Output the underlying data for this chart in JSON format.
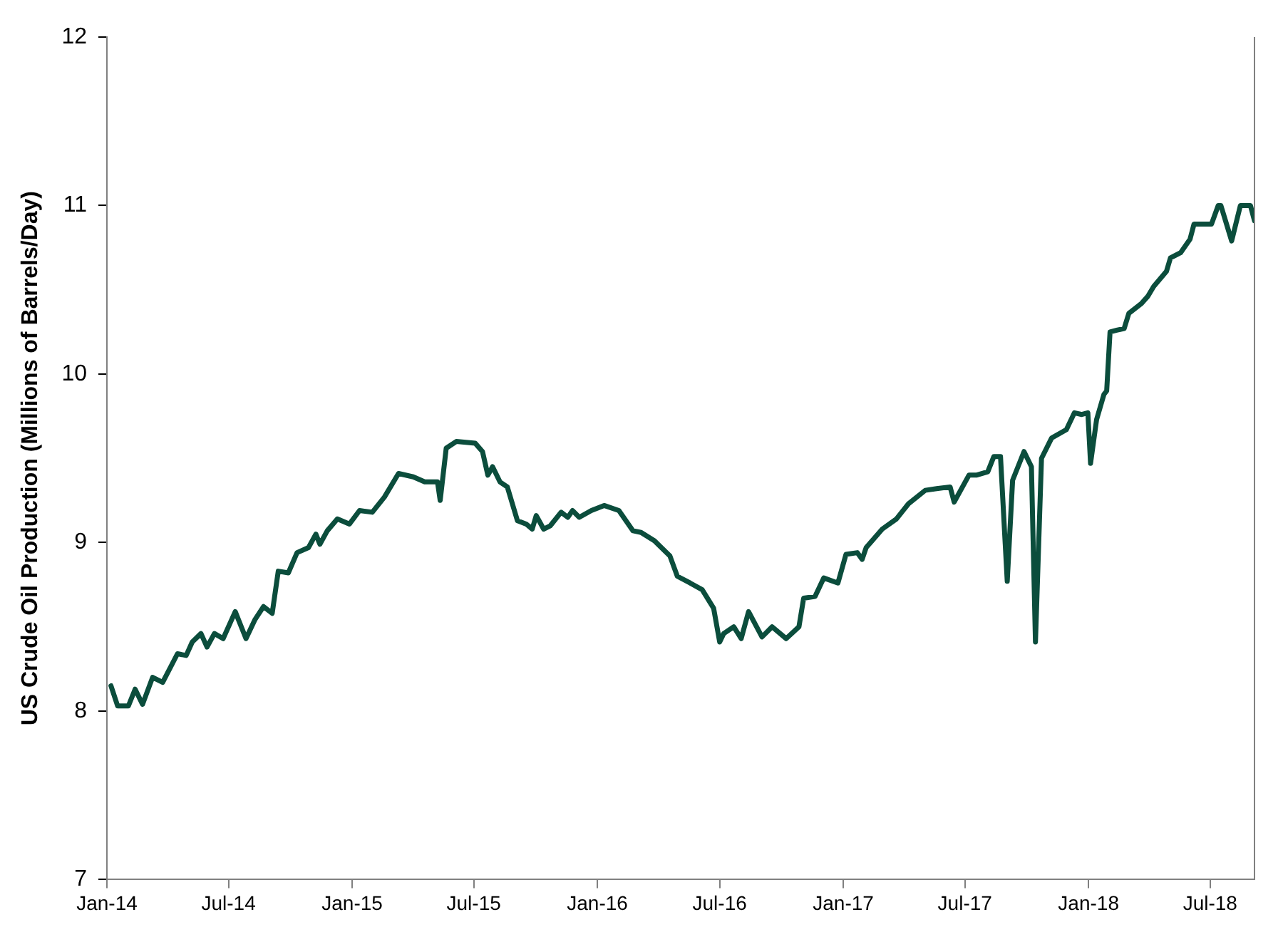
{
  "chart_data": {
    "type": "line",
    "ylabel": "US Crude Oil Production (Millions of Barrels/Day)",
    "x": [
      "2014-01-07",
      "2014-01-17",
      "2014-02-02",
      "2014-02-12",
      "2014-02-23",
      "2014-03-10",
      "2014-03-25",
      "2014-04-16",
      "2014-04-29",
      "2014-05-08",
      "2014-05-21",
      "2014-05-30",
      "2014-06-10",
      "2014-06-23",
      "2014-07-11",
      "2014-07-27",
      "2014-08-09",
      "2014-08-22",
      "2014-09-04",
      "2014-09-13",
      "2014-09-28",
      "2014-10-11",
      "2014-10-28",
      "2014-11-08",
      "2014-11-14",
      "2014-11-25",
      "2014-12-10",
      "2014-12-28",
      "2015-01-12",
      "2015-01-31",
      "2015-02-18",
      "2015-03-11",
      "2015-04-02",
      "2015-04-19",
      "2015-05-08",
      "2015-05-12",
      "2015-05-21",
      "2015-06-05",
      "2015-07-03",
      "2015-07-14",
      "2015-07-22",
      "2015-07-29",
      "2015-08-09",
      "2015-08-20",
      "2015-09-04",
      "2015-09-17",
      "2015-09-26",
      "2015-10-02",
      "2015-10-13",
      "2015-10-23",
      "2015-11-08",
      "2015-11-18",
      "2015-11-25",
      "2015-12-05",
      "2015-12-23",
      "2016-01-11",
      "2016-02-02",
      "2016-02-23",
      "2016-03-06",
      "2016-03-26",
      "2016-04-18",
      "2016-04-29",
      "2016-05-18",
      "2016-06-05",
      "2016-06-22",
      "2016-07-01",
      "2016-07-07",
      "2016-07-22",
      "2016-08-02",
      "2016-08-13",
      "2016-09-02",
      "2016-09-17",
      "2016-10-08",
      "2016-10-27",
      "2016-11-03",
      "2016-11-20",
      "2016-12-03",
      "2016-12-24",
      "2017-01-05",
      "2017-01-22",
      "2017-01-29",
      "2017-02-04",
      "2017-02-28",
      "2017-03-21",
      "2017-04-08",
      "2017-05-03",
      "2017-05-20",
      "2017-06-09",
      "2017-06-15",
      "2017-07-07",
      "2017-07-18",
      "2017-08-04",
      "2017-08-13",
      "2017-08-23",
      "2017-09-02",
      "2017-09-10",
      "2017-09-27",
      "2017-10-08",
      "2017-10-14",
      "2017-10-23",
      "2017-11-07",
      "2017-11-29",
      "2017-12-11",
      "2017-12-22",
      "2017-12-31",
      "2018-01-04",
      "2018-01-13",
      "2018-01-24",
      "2018-01-28",
      "2018-02-02",
      "2018-02-12",
      "2018-02-23",
      "2018-03-02",
      "2018-03-21",
      "2018-03-30",
      "2018-04-08",
      "2018-04-27",
      "2018-05-03",
      "2018-05-18",
      "2018-06-01",
      "2018-06-07",
      "2018-07-03",
      "2018-07-13",
      "2018-07-17",
      "2018-08-02",
      "2018-08-15",
      "2018-08-30",
      "2018-09-05"
    ],
    "series": [
      {
        "color": "#0b4d3c",
        "values": [
          8.15,
          8.03,
          8.03,
          8.13,
          8.04,
          8.2,
          8.17,
          8.34,
          8.33,
          8.41,
          8.46,
          8.38,
          8.46,
          8.43,
          8.59,
          8.43,
          8.54,
          8.62,
          8.58,
          8.83,
          8.82,
          8.94,
          8.97,
          9.05,
          8.99,
          9.07,
          9.14,
          9.11,
          9.19,
          9.18,
          9.27,
          9.41,
          9.39,
          9.36,
          9.36,
          9.25,
          9.56,
          9.6,
          9.59,
          9.54,
          9.4,
          9.45,
          9.36,
          9.33,
          9.13,
          9.11,
          9.08,
          9.16,
          9.08,
          9.1,
          9.18,
          9.15,
          9.19,
          9.15,
          9.19,
          9.22,
          9.19,
          9.07,
          9.06,
          9.01,
          8.92,
          8.8,
          8.76,
          8.72,
          8.61,
          8.41,
          8.46,
          8.5,
          8.43,
          8.59,
          8.44,
          8.5,
          8.43,
          8.5,
          8.67,
          8.68,
          8.79,
          8.76,
          8.93,
          8.94,
          8.9,
          8.97,
          9.08,
          9.14,
          9.23,
          9.31,
          9.32,
          9.33,
          9.24,
          9.4,
          9.4,
          9.42,
          9.51,
          9.51,
          8.77,
          9.37,
          9.54,
          9.45,
          8.41,
          9.5,
          9.62,
          9.67,
          9.77,
          9.76,
          9.77,
          9.47,
          9.73,
          9.88,
          9.9,
          10.25,
          10.26,
          10.27,
          10.36,
          10.42,
          10.46,
          10.52,
          10.61,
          10.69,
          10.72,
          10.8,
          10.89,
          10.89,
          11.0,
          11.0,
          10.79,
          11.0,
          11.0,
          10.91
        ]
      }
    ],
    "xlim": [
      "2014-01-01",
      "2018-09-05"
    ],
    "xticks": [
      {
        "value": "2014-01-01",
        "label": "Jan-14"
      },
      {
        "value": "2014-07-01",
        "label": "Jul-14"
      },
      {
        "value": "2015-01-01",
        "label": "Jan-15"
      },
      {
        "value": "2015-07-01",
        "label": "Jul-15"
      },
      {
        "value": "2016-01-01",
        "label": "Jan-16"
      },
      {
        "value": "2016-07-01",
        "label": "Jul-16"
      },
      {
        "value": "2017-01-01",
        "label": "Jan-17"
      },
      {
        "value": "2017-07-01",
        "label": "Jul-17"
      },
      {
        "value": "2018-01-01",
        "label": "Jan-18"
      },
      {
        "value": "2018-07-01",
        "label": "Jul-18"
      }
    ],
    "ylim": [
      7,
      12
    ],
    "yticks": [
      7,
      8,
      9,
      10,
      11,
      12
    ],
    "grid": false,
    "legend": false,
    "marker": "none",
    "line_style": "solid"
  }
}
